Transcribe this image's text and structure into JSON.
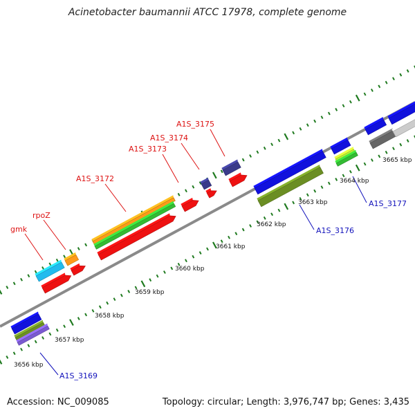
{
  "title": "Acinetobacter baumannii ATCC 17978, complete genome",
  "footer": {
    "accession": "Accession: NC_009085",
    "topology": "Topology: circular; Length: 3,976,747 bp; Genes: 3,435"
  },
  "colors": {
    "backbone": "#8a8a8a",
    "tick": "#1f7a1f",
    "gene_red": "#ee1111",
    "gene_orange": "#ff9a1a",
    "gene_green": "#33bb33",
    "gene_lime": "#bbee33",
    "gene_cyan": "#22bbee",
    "gene_blue": "#1111dd",
    "gene_navy": "#3a3a8a",
    "gene_olive": "#6b8e23",
    "gene_purple": "#7a5ad0",
    "gene_grey": "#666666",
    "gene_lightgrey": "#cccccc",
    "label_red": "#dd1111",
    "label_blue": "#1111bb"
  },
  "kbp_labels": [
    "3656 kbp",
    "3657 kbp",
    "3658 kbp",
    "3659 kbp",
    "3660 kbp",
    "3661 kbp",
    "3662 kbp",
    "3663 kbp",
    "3664 kbp",
    "3665 kbp"
  ],
  "gene_labels": [
    {
      "text": "gmk",
      "color": "red"
    },
    {
      "text": "rpoZ",
      "color": "red"
    },
    {
      "text": "A1S_3172",
      "color": "red"
    },
    {
      "text": "A1S_3173",
      "color": "red"
    },
    {
      "text": "A1S_3174",
      "color": "red"
    },
    {
      "text": "A1S_3175",
      "color": "red"
    },
    {
      "text": "A1S_3169",
      "color": "blue"
    },
    {
      "text": "A1S_3176",
      "color": "blue"
    },
    {
      "text": "A1S_3177",
      "color": "blue"
    }
  ]
}
